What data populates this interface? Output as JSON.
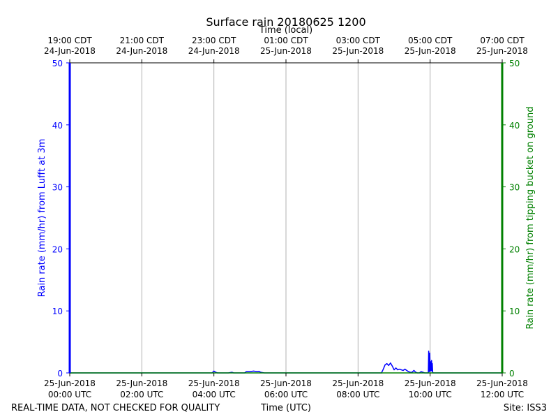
{
  "chart_data": {
    "type": "line",
    "title": "Surface rain 20180625 1200",
    "top_axis_label": "Time (local)",
    "xlabel": "Time (UTC)",
    "ylabel": "Rain rate (mm/hr) from Lufft at 3m",
    "y2label": "Rain rate (mm/hr) from tipping bucket on ground",
    "footer_left": "REAL-TIME DATA, NOT CHECKED FOR QUALITY",
    "footer_right": "Site: ISS3",
    "ylim": [
      0,
      50
    ],
    "y2lim": [
      0,
      50
    ],
    "yticks": [
      0,
      10,
      20,
      30,
      40,
      50
    ],
    "y2ticks": [
      0,
      10,
      20,
      30,
      40,
      50
    ],
    "xlim": [
      0,
      12
    ],
    "grid": "vertical",
    "colors": {
      "left_axis": "#0000ff",
      "right_axis": "#008000",
      "lufft_series": "#0000ff",
      "bucket_series": "#008000",
      "grid": "#b0b0b0"
    },
    "x_ticks_utc": [
      {
        "value": 0,
        "line1": "25-Jun-2018",
        "line2": "00:00 UTC"
      },
      {
        "value": 2,
        "line1": "25-Jun-2018",
        "line2": "02:00 UTC"
      },
      {
        "value": 4,
        "line1": "25-Jun-2018",
        "line2": "04:00 UTC"
      },
      {
        "value": 6,
        "line1": "25-Jun-2018",
        "line2": "06:00 UTC"
      },
      {
        "value": 8,
        "line1": "25-Jun-2018",
        "line2": "08:00 UTC"
      },
      {
        "value": 10,
        "line1": "25-Jun-2018",
        "line2": "10:00 UTC"
      },
      {
        "value": 12,
        "line1": "25-Jun-2018",
        "line2": "12:00 UTC"
      }
    ],
    "x_ticks_local": [
      {
        "value": 0,
        "line1": "19:00 CDT",
        "line2": "24-Jun-2018"
      },
      {
        "value": 2,
        "line1": "21:00 CDT",
        "line2": "24-Jun-2018"
      },
      {
        "value": 4,
        "line1": "23:00 CDT",
        "line2": "24-Jun-2018"
      },
      {
        "value": 6,
        "line1": "01:00 CDT",
        "line2": "25-Jun-2018"
      },
      {
        "value": 8,
        "line1": "03:00 CDT",
        "line2": "25-Jun-2018"
      },
      {
        "value": 10,
        "line1": "05:00 CDT",
        "line2": "25-Jun-2018"
      },
      {
        "value": 12,
        "line1": "07:00 CDT",
        "line2": "25-Jun-2018"
      }
    ],
    "series": [
      {
        "axis": "left",
        "x": [
          0,
          3.95,
          4.0,
          4.05,
          4.1,
          4.4,
          4.5,
          4.55,
          4.6,
          4.85,
          4.9,
          5.0,
          5.1,
          5.2,
          5.25,
          5.3,
          5.4,
          8.65,
          8.7,
          8.75,
          8.8,
          8.85,
          8.9,
          8.95,
          9.0,
          9.05,
          9.1,
          9.15,
          9.2,
          9.25,
          9.3,
          9.4,
          9.45,
          9.5,
          9.55,
          9.6,
          9.65,
          9.7,
          9.75,
          9.8,
          9.85,
          9.9,
          9.95,
          9.96,
          9.97,
          9.98,
          9.99,
          10.0,
          10.01,
          10.02,
          10.03,
          10.04,
          10.05,
          10.06,
          10.07,
          10.08,
          10.1,
          12
        ],
        "y": [
          0,
          0,
          0.3,
          0.1,
          0,
          0,
          0.1,
          0,
          0,
          0,
          0.2,
          0.2,
          0.3,
          0.2,
          0.25,
          0.1,
          0,
          0,
          0.6,
          1.3,
          1.5,
          1.2,
          1.6,
          1.1,
          0.5,
          0.8,
          0.5,
          0.6,
          0.5,
          0.4,
          0.6,
          0.2,
          0.1,
          0.1,
          0.4,
          0.1,
          0,
          0,
          0.2,
          0.1,
          0,
          0,
          0,
          3.5,
          1.0,
          0.2,
          3.2,
          1.0,
          0.3,
          1.8,
          0.4,
          2.0,
          0.3,
          1.5,
          0.2,
          0,
          0,
          0
        ]
      },
      {
        "axis": "right",
        "x": [
          0,
          12
        ],
        "y": [
          0,
          0
        ]
      }
    ]
  }
}
